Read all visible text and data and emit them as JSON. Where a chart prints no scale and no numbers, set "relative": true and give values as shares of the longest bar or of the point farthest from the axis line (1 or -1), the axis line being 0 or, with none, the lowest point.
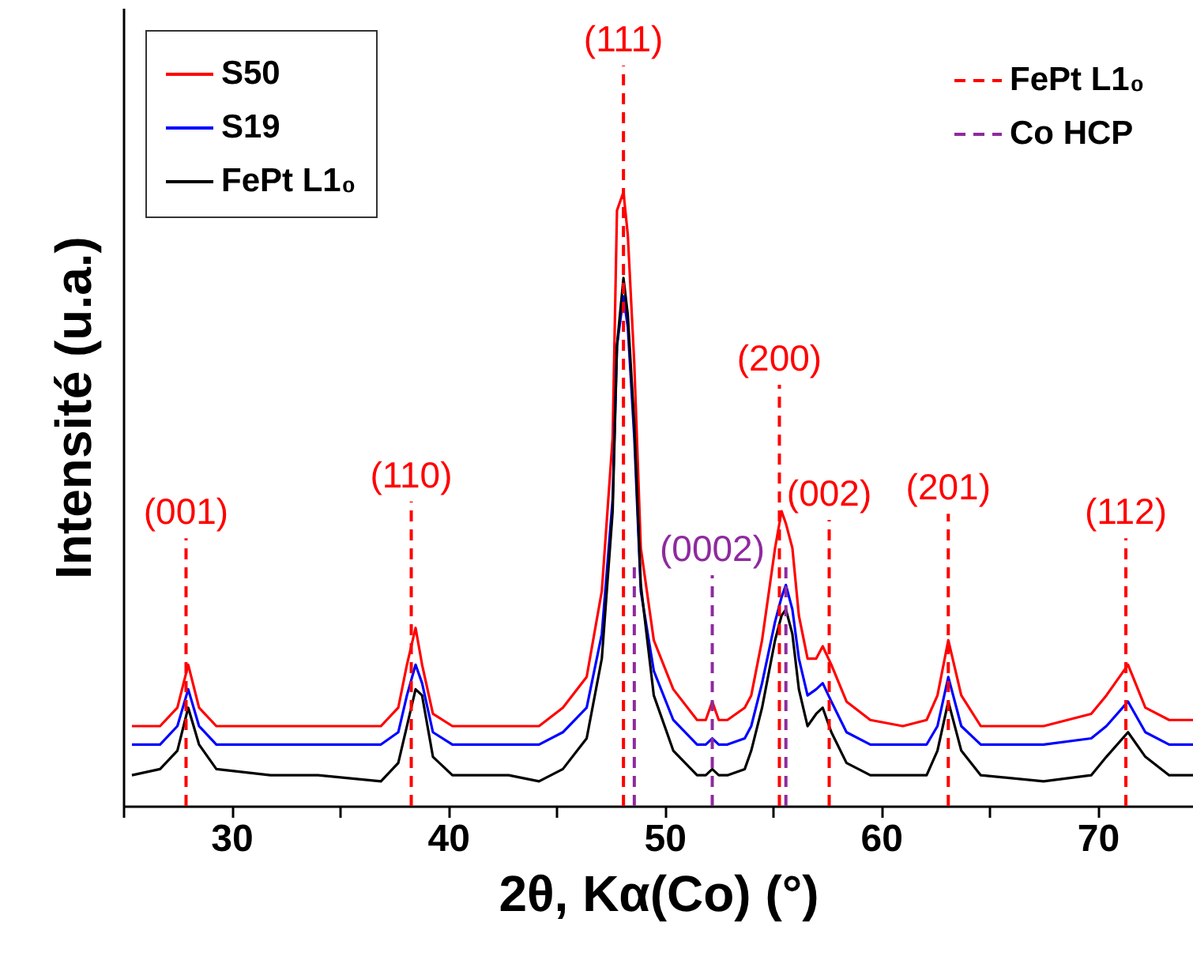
{
  "chart_data": {
    "type": "line",
    "relative": true,
    "xlabel": "2θ, Kα(Co) (°)",
    "ylabel": "Intensité (u.a.)",
    "xlim": [
      25,
      74.4
    ],
    "xticks": [
      {
        "value": 25,
        "label": null
      },
      30,
      {
        "value": 35,
        "label": null
      },
      40,
      {
        "value": 45,
        "label": null
      },
      50,
      {
        "value": 55,
        "label": null
      },
      60,
      {
        "value": 65,
        "label": null
      },
      70
    ],
    "x": [
      25.4,
      26.7,
      27.5,
      28.0,
      28.5,
      29.3,
      31.8,
      34.0,
      36.9,
      37.7,
      38.1,
      38.5,
      38.8,
      39.3,
      40.2,
      42.8,
      44.2,
      45.3,
      46.4,
      47.1,
      47.6,
      47.8,
      48.1,
      48.3,
      48.6,
      48.9,
      49.5,
      50.4,
      51.5,
      51.9,
      52.2,
      52.5,
      52.9,
      53.7,
      54.0,
      54.5,
      55.1,
      55.4,
      55.6,
      55.9,
      56.2,
      56.6,
      57.0,
      57.3,
      57.7,
      58.4,
      59.5,
      61.0,
      62.1,
      62.6,
      63.1,
      63.7,
      64.6,
      67.5,
      69.7,
      70.4,
      71.4,
      72.2,
      73.3,
      74.4
    ],
    "series": [
      {
        "name": "S50",
        "color": "#ff0000",
        "values": [
          0.13,
          0.13,
          0.16,
          0.23,
          0.16,
          0.13,
          0.13,
          0.13,
          0.13,
          0.16,
          0.23,
          0.29,
          0.23,
          0.15,
          0.13,
          0.13,
          0.13,
          0.16,
          0.21,
          0.35,
          0.6,
          0.97,
          1.0,
          0.93,
          0.72,
          0.42,
          0.27,
          0.19,
          0.14,
          0.14,
          0.17,
          0.14,
          0.14,
          0.16,
          0.18,
          0.27,
          0.42,
          0.48,
          0.46,
          0.42,
          0.31,
          0.24,
          0.24,
          0.26,
          0.23,
          0.17,
          0.14,
          0.13,
          0.14,
          0.18,
          0.27,
          0.18,
          0.13,
          0.13,
          0.15,
          0.18,
          0.23,
          0.16,
          0.14,
          0.14
        ]
      },
      {
        "name": "S19",
        "color": "#0000ff",
        "values": [
          0.1,
          0.1,
          0.13,
          0.19,
          0.13,
          0.1,
          0.1,
          0.1,
          0.1,
          0.12,
          0.18,
          0.23,
          0.2,
          0.12,
          0.1,
          0.1,
          0.1,
          0.12,
          0.16,
          0.28,
          0.5,
          0.75,
          0.83,
          0.78,
          0.6,
          0.35,
          0.22,
          0.14,
          0.1,
          0.1,
          0.11,
          0.1,
          0.1,
          0.11,
          0.13,
          0.2,
          0.3,
          0.34,
          0.36,
          0.32,
          0.24,
          0.18,
          0.19,
          0.2,
          0.17,
          0.12,
          0.1,
          0.1,
          0.1,
          0.13,
          0.21,
          0.13,
          0.1,
          0.1,
          0.11,
          0.13,
          0.17,
          0.12,
          0.1,
          0.1
        ]
      },
      {
        "name": "FePt L1₀",
        "color": "#000000",
        "values": [
          0.05,
          0.06,
          0.09,
          0.16,
          0.1,
          0.06,
          0.05,
          0.05,
          0.04,
          0.07,
          0.13,
          0.19,
          0.18,
          0.08,
          0.05,
          0.05,
          0.04,
          0.06,
          0.11,
          0.24,
          0.48,
          0.75,
          0.86,
          0.8,
          0.62,
          0.36,
          0.18,
          0.09,
          0.05,
          0.05,
          0.06,
          0.05,
          0.05,
          0.06,
          0.09,
          0.16,
          0.27,
          0.31,
          0.32,
          0.28,
          0.19,
          0.13,
          0.15,
          0.16,
          0.12,
          0.07,
          0.05,
          0.05,
          0.05,
          0.09,
          0.17,
          0.09,
          0.05,
          0.04,
          0.05,
          0.08,
          0.12,
          0.08,
          0.05,
          0.05
        ]
      }
    ],
    "legend": "top left",
    "ref_lines": [
      {
        "axis": "x",
        "value": 27.9,
        "label": "FePt L1₀",
        "color": "#ff0000",
        "line_style": "dashed"
      },
      {
        "axis": "x",
        "value": 38.3,
        "color": "#ff0000",
        "line_style": "dashed"
      },
      {
        "axis": "x",
        "value": 48.1,
        "color": "#ff0000",
        "line_style": "dashed"
      },
      {
        "axis": "x",
        "value": 55.3,
        "color": "#ff0000",
        "line_style": "dashed"
      },
      {
        "axis": "x",
        "value": 57.6,
        "color": "#ff0000",
        "line_style": "dashed"
      },
      {
        "axis": "x",
        "value": 52.2,
        "label": "Co HCP",
        "color": "#8e2a9e",
        "line_style": "dashed"
      },
      {
        "axis": "x",
        "value": 63.1,
        "color": "#ff0000",
        "line_style": "dashed"
      },
      {
        "axis": "x",
        "value": 71.3,
        "color": "#ff0000",
        "line_style": "dashed"
      },
      {
        "axis": "x",
        "value": 48.6,
        "color": "#8e2a9e",
        "line_style": "dashed"
      },
      {
        "axis": "x",
        "value": 55.6,
        "color": "#8e2a9e",
        "line_style": "dashed"
      }
    ],
    "annotations": [
      "(001)",
      "(110)",
      "(111)",
      "(200)",
      "(002)",
      "(0002)",
      "(201)",
      "(112)"
    ]
  }
}
